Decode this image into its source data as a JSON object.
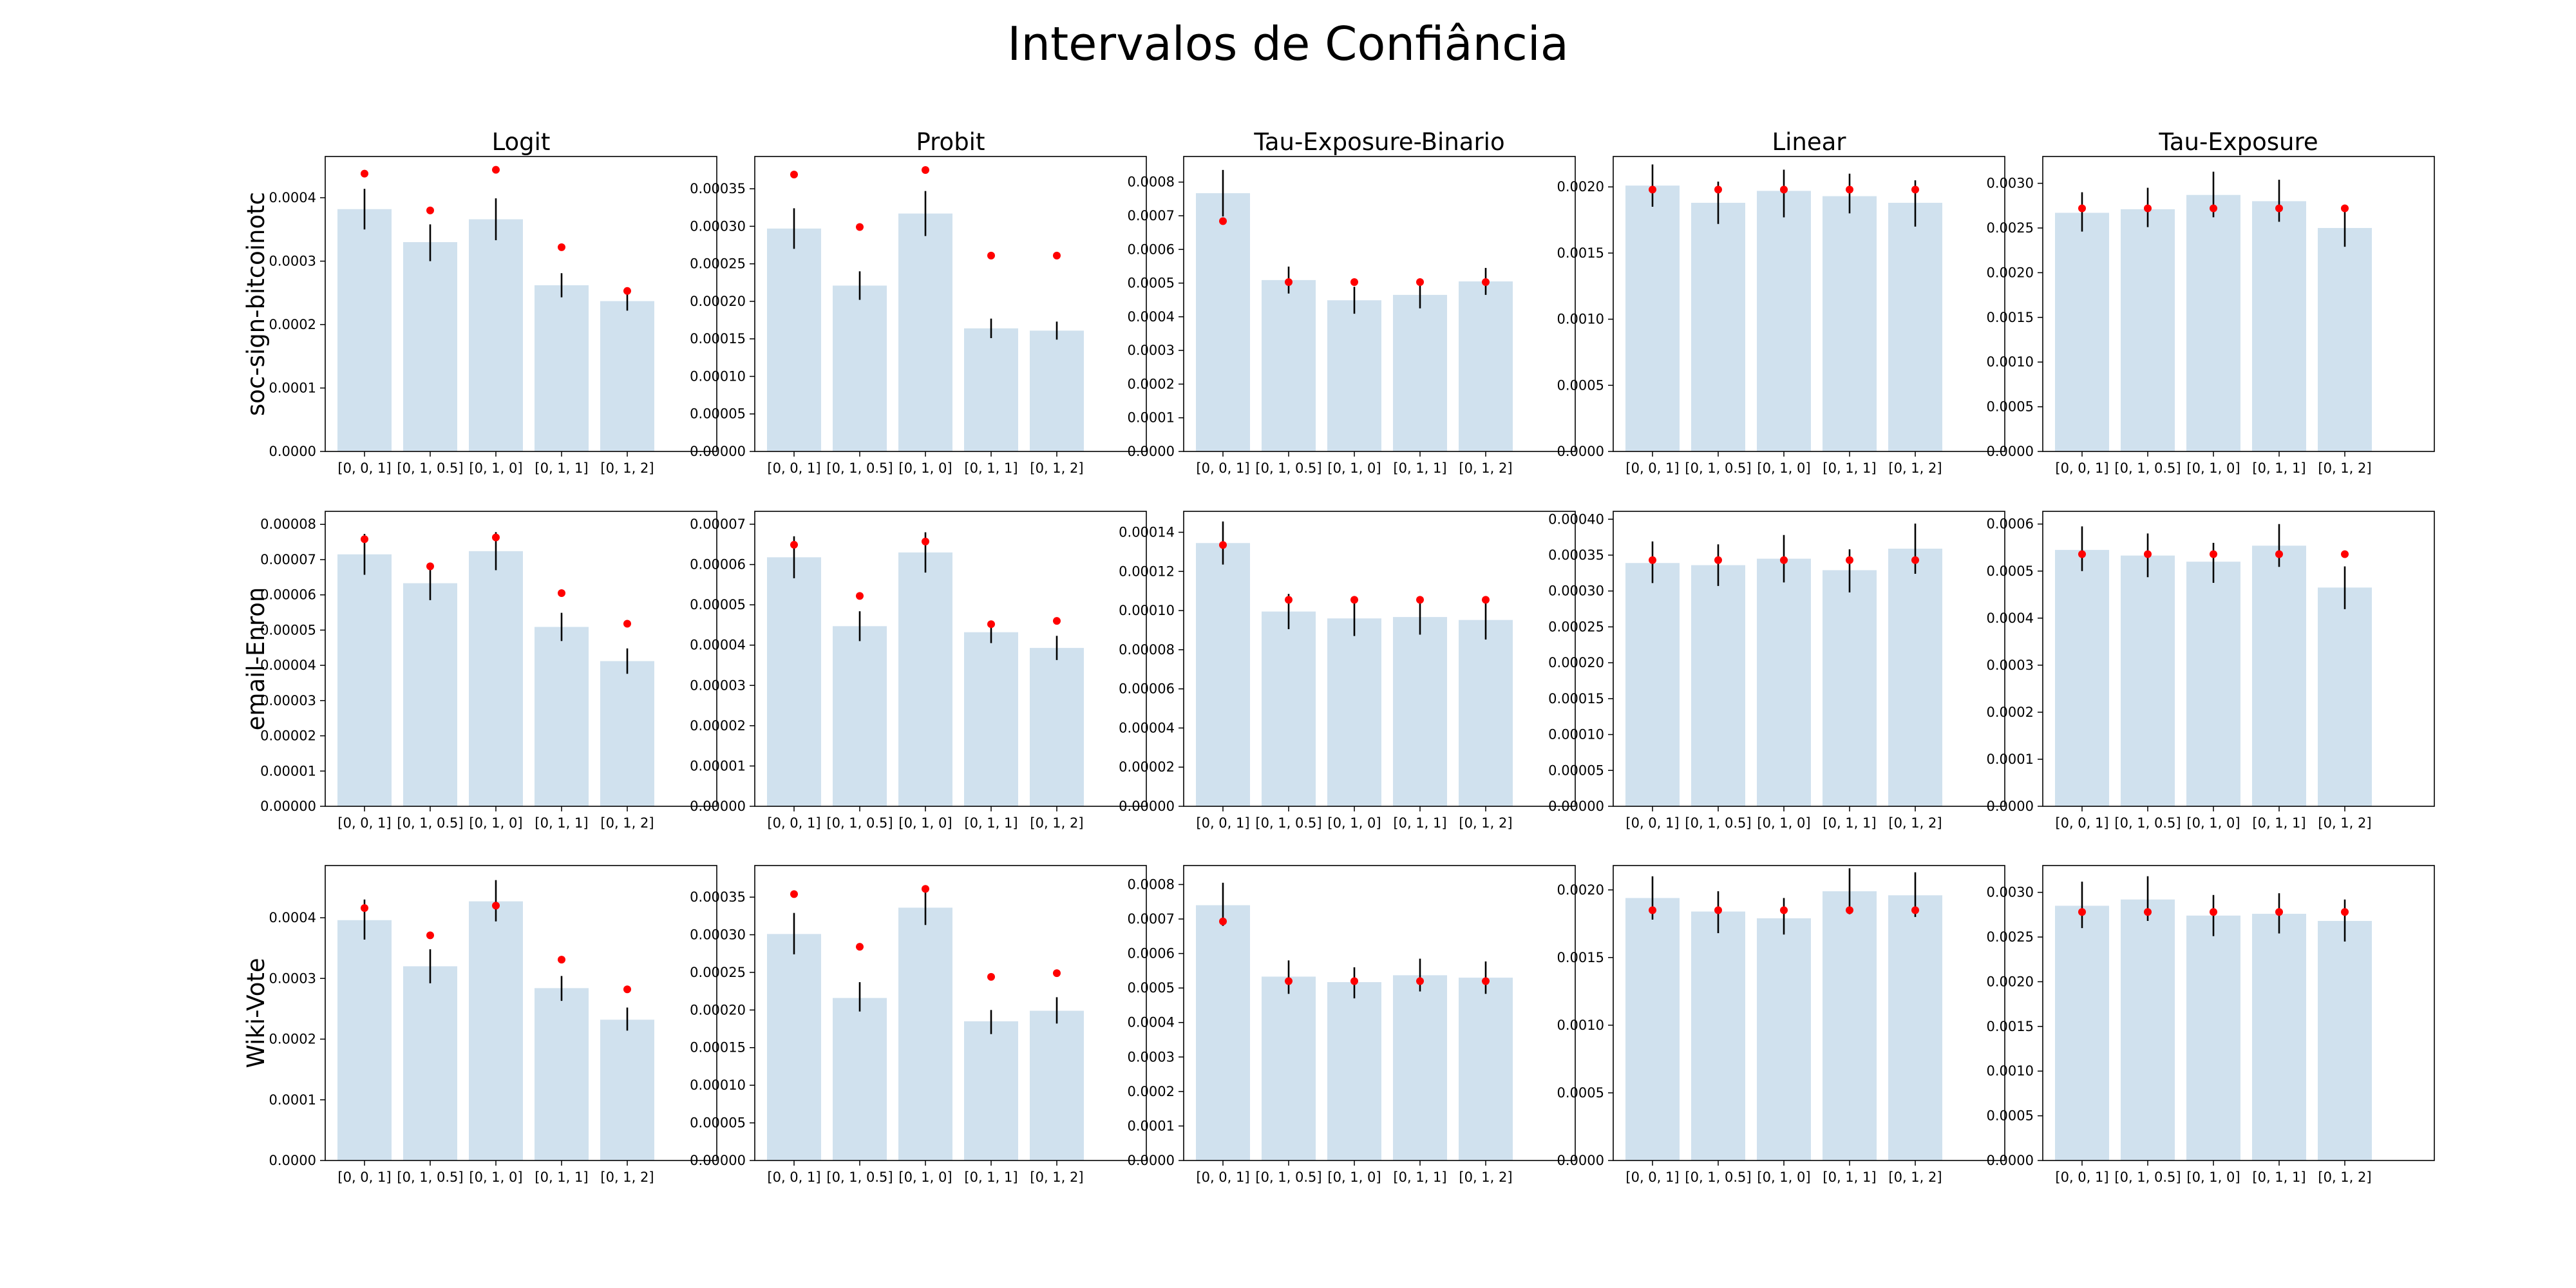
{
  "chart_data": {
    "type": "bar",
    "title": "Intervalos de Confiância",
    "columns": [
      "Logit",
      "Probit",
      "Tau-Exposure-Binario",
      "Linear",
      "Tau-Exposure"
    ],
    "rows": [
      "soc-sign-bitcoinotc",
      "email-Enron",
      "Wiki-Vote"
    ],
    "categories": [
      "[0, 0, 1]",
      "[0, 1, 0.5]",
      "[0, 1, 0]",
      "[0, 1, 1]",
      "[0, 1, 2]"
    ],
    "panels": [
      [
        {
          "ylim": [
            0,
            0.000465
          ],
          "ticks": [
            "0.0000",
            "0.0001",
            "0.0002",
            "0.0003",
            "0.0004"
          ],
          "tick_values": [
            0,
            0.0001,
            0.0002,
            0.0003,
            0.0004
          ],
          "values": [
            0.000382,
            0.00033,
            0.000366,
            0.000262,
            0.000237
          ],
          "err_low": [
            0.00035,
            0.0003,
            0.000333,
            0.000243,
            0.000222
          ],
          "err_high": [
            0.000414,
            0.000358,
            0.000399,
            0.000281,
            0.000254
          ],
          "points": [
            0.000438,
            0.00038,
            0.000444,
            0.000322,
            0.000253
          ]
        },
        {
          "ylim": [
            0,
            0.000393
          ],
          "ticks": [
            "0.00000",
            "0.00005",
            "0.00010",
            "0.00015",
            "0.00020",
            "0.00025",
            "0.00030",
            "0.00035"
          ],
          "tick_values": [
            0,
            5e-05,
            0.0001,
            0.00015,
            0.0002,
            0.00025,
            0.0003,
            0.00035
          ],
          "values": [
            0.000297,
            0.000221,
            0.000317,
            0.000164,
            0.000161
          ],
          "err_low": [
            0.00027,
            0.000202,
            0.000287,
            0.000151,
            0.000149
          ],
          "err_high": [
            0.000324,
            0.00024,
            0.000347,
            0.000177,
            0.000173
          ],
          "points": [
            0.000369,
            0.000299,
            0.000375,
            0.000261,
            0.000261
          ]
        },
        {
          "ylim": [
            0,
            0.000876
          ],
          "ticks": [
            "0.0000",
            "0.0001",
            "0.0002",
            "0.0003",
            "0.0004",
            "0.0005",
            "0.0006",
            "0.0007",
            "0.0008"
          ],
          "tick_values": [
            0,
            0.0001,
            0.0002,
            0.0003,
            0.0004,
            0.0005,
            0.0006,
            0.0007,
            0.0008
          ],
          "values": [
            0.000767,
            0.000509,
            0.000449,
            0.000465,
            0.000505
          ],
          "err_low": [
            0.000698,
            0.000469,
            0.000409,
            0.000425,
            0.000465
          ],
          "err_high": [
            0.000836,
            0.000549,
            0.000489,
            0.000505,
            0.000545
          ],
          "points": [
            0.000684,
            0.000503,
            0.000503,
            0.000503,
            0.000503
          ]
        },
        {
          "ylim": [
            0,
            0.00223
          ],
          "ticks": [
            "0.0000",
            "0.0005",
            "0.0010",
            "0.0015",
            "0.0020"
          ],
          "tick_values": [
            0,
            0.0005,
            0.001,
            0.0015,
            0.002
          ],
          "values": [
            0.00201,
            0.00188,
            0.00197,
            0.00193,
            0.00188
          ],
          "err_low": [
            0.00185,
            0.00172,
            0.00177,
            0.0018,
            0.0017
          ],
          "err_high": [
            0.00217,
            0.00204,
            0.00213,
            0.0021,
            0.00205
          ],
          "points": [
            0.00198,
            0.00198,
            0.00198,
            0.00198,
            0.00198
          ]
        },
        {
          "ylim": [
            0,
            0.0033
          ],
          "ticks": [
            "0.0000",
            "0.0005",
            "0.0010",
            "0.0015",
            "0.0020",
            "0.0025",
            "0.0030"
          ],
          "tick_values": [
            0,
            0.0005,
            0.001,
            0.0015,
            0.002,
            0.0025,
            0.003
          ],
          "values": [
            0.00267,
            0.00271,
            0.00287,
            0.0028,
            0.0025
          ],
          "err_low": [
            0.00246,
            0.00251,
            0.00262,
            0.00257,
            0.00229
          ],
          "err_high": [
            0.0029,
            0.00295,
            0.00313,
            0.00304,
            0.00274
          ],
          "points": [
            0.00272,
            0.00272,
            0.00272,
            0.00272,
            0.00272
          ]
        }
      ],
      [
        {
          "ylim": [
            0,
            8.37e-05
          ],
          "ticks": [
            "0.00000",
            "0.00001",
            "0.00002",
            "0.00003",
            "0.00004",
            "0.00005",
            "0.00006",
            "0.00007",
            "0.00008"
          ],
          "tick_values": [
            0,
            1e-05,
            2e-05,
            3e-05,
            4e-05,
            5e-05,
            6e-05,
            7e-05,
            8e-05
          ],
          "values": [
            7.15e-05,
            6.33e-05,
            7.24e-05,
            5.09e-05,
            4.12e-05
          ],
          "err_low": [
            6.57e-05,
            5.85e-05,
            6.7e-05,
            4.69e-05,
            3.76e-05
          ],
          "err_high": [
            7.73e-05,
            6.81e-05,
            7.78e-05,
            5.49e-05,
            4.48e-05
          ],
          "points": [
            7.58e-05,
            6.81e-05,
            7.63e-05,
            6.05e-05,
            5.18e-05
          ]
        },
        {
          "ylim": [
            0,
            7.32e-05
          ],
          "ticks": [
            "0.00000",
            "0.00001",
            "0.00002",
            "0.00003",
            "0.00004",
            "0.00005",
            "0.00006",
            "0.00007"
          ],
          "tick_values": [
            0,
            1e-05,
            2e-05,
            3e-05,
            4e-05,
            5e-05,
            6e-05,
            7e-05
          ],
          "values": [
            6.18e-05,
            4.47e-05,
            6.3e-05,
            4.32e-05,
            3.93e-05
          ],
          "err_low": [
            5.66e-05,
            4.1e-05,
            5.8e-05,
            4.05e-05,
            3.63e-05
          ],
          "err_high": [
            6.7e-05,
            4.84e-05,
            6.8e-05,
            4.59e-05,
            4.23e-05
          ],
          "points": [
            6.49e-05,
            5.22e-05,
            6.57e-05,
            4.52e-05,
            4.6e-05
          ]
        },
        {
          "ylim": [
            0,
            0.0001507
          ],
          "ticks": [
            "0.00000",
            "0.00002",
            "0.00004",
            "0.00006",
            "0.00008",
            "0.00010",
            "0.00012",
            "0.00014"
          ],
          "tick_values": [
            0,
            2e-05,
            4e-05,
            6e-05,
            8e-05,
            0.0001,
            0.00012,
            0.00014
          ],
          "values": [
            0.0001345,
            9.95e-05,
            9.6e-05,
            9.67e-05,
            9.52e-05
          ],
          "err_low": [
            0.0001235,
            9.05e-05,
            8.7e-05,
            8.77e-05,
            8.52e-05
          ],
          "err_high": [
            0.0001455,
            0.0001085,
            0.000105,
            0.0001057,
            0.0001052
          ],
          "points": [
            0.0001335,
            0.0001055,
            0.0001055,
            0.0001055,
            0.0001055
          ]
        },
        {
          "ylim": [
            0,
            0.000411
          ],
          "ticks": [
            "0.00000",
            "0.00005",
            "0.00010",
            "0.00015",
            "0.00020",
            "0.00025",
            "0.00030",
            "0.00035",
            "0.00040"
          ],
          "tick_values": [
            0,
            5e-05,
            0.0001,
            0.00015,
            0.0002,
            0.00025,
            0.0003,
            0.00035,
            0.0004
          ],
          "values": [
            0.000339,
            0.000336,
            0.000345,
            0.000329,
            0.000359
          ],
          "err_low": [
            0.000311,
            0.000307,
            0.000312,
            0.000298,
            0.000324
          ],
          "err_high": [
            0.000369,
            0.000365,
            0.000378,
            0.000358,
            0.000394
          ],
          "points": [
            0.000343,
            0.000343,
            0.000343,
            0.000343,
            0.000343
          ]
        },
        {
          "ylim": [
            0,
            0.000627
          ],
          "ticks": [
            "0.0000",
            "0.0001",
            "0.0002",
            "0.0003",
            "0.0004",
            "0.0005",
            "0.0006"
          ],
          "tick_values": [
            0,
            0.0001,
            0.0002,
            0.0003,
            0.0004,
            0.0005,
            0.0006
          ],
          "values": [
            0.000545,
            0.000533,
            0.00052,
            0.000554,
            0.000465
          ],
          "err_low": [
            0.0005,
            0.000487,
            0.000475,
            0.000509,
            0.000419
          ],
          "err_high": [
            0.000595,
            0.00058,
            0.00056,
            0.0006,
            0.00051
          ],
          "points": [
            0.000536,
            0.000536,
            0.000536,
            0.000536,
            0.000536
          ]
        }
      ],
      [
        {
          "ylim": [
            0,
            0.000486
          ],
          "ticks": [
            "0.0000",
            "0.0001",
            "0.0002",
            "0.0003",
            "0.0004"
          ],
          "tick_values": [
            0,
            0.0001,
            0.0002,
            0.0003,
            0.0004
          ],
          "values": [
            0.000396,
            0.00032,
            0.000427,
            0.000284,
            0.000232
          ],
          "err_low": [
            0.000364,
            0.000292,
            0.000394,
            0.000263,
            0.000214
          ],
          "err_high": [
            0.00043,
            0.000348,
            0.000462,
            0.000304,
            0.000252
          ],
          "points": [
            0.000416,
            0.000371,
            0.00042,
            0.000331,
            0.000282
          ]
        },
        {
          "ylim": [
            0,
            0.000392
          ],
          "ticks": [
            "0.00000",
            "0.00005",
            "0.00010",
            "0.00015",
            "0.00020",
            "0.00025",
            "0.00030",
            "0.00035"
          ],
          "tick_values": [
            0,
            5e-05,
            0.0001,
            0.00015,
            0.0002,
            0.00025,
            0.0003,
            0.00035
          ],
          "values": [
            0.000301,
            0.000216,
            0.000336,
            0.000185,
            0.000199
          ],
          "err_low": [
            0.000274,
            0.000198,
            0.000313,
            0.000168,
            0.000182
          ],
          "err_high": [
            0.000329,
            0.000237,
            0.000362,
            0.0002,
            0.000217
          ],
          "points": [
            0.000354,
            0.000284,
            0.000361,
            0.000244,
            0.000249
          ]
        },
        {
          "ylim": [
            0,
            0.000855
          ],
          "ticks": [
            "0.0000",
            "0.0001",
            "0.0002",
            "0.0003",
            "0.0004",
            "0.0005",
            "0.0006",
            "0.0007",
            "0.0008"
          ],
          "tick_values": [
            0,
            0.0001,
            0.0002,
            0.0003,
            0.0004,
            0.0005,
            0.0006,
            0.0007,
            0.0008
          ],
          "values": [
            0.00074,
            0.000533,
            0.000517,
            0.000537,
            0.00053
          ],
          "err_low": [
            0.00068,
            0.000483,
            0.00047,
            0.00049,
            0.000483
          ],
          "err_high": [
            0.000805,
            0.00058,
            0.00056,
            0.000585,
            0.000577
          ],
          "points": [
            0.000693,
            0.00052,
            0.00052,
            0.00052,
            0.00052
          ]
        },
        {
          "ylim": [
            0,
            0.00218
          ],
          "ticks": [
            "0.0000",
            "0.0005",
            "0.0010",
            "0.0015",
            "0.0020"
          ],
          "tick_values": [
            0,
            0.0005,
            0.001,
            0.0015,
            0.002
          ],
          "values": [
            0.00194,
            0.00184,
            0.00179,
            0.00199,
            0.00196
          ],
          "err_low": [
            0.00178,
            0.00168,
            0.00167,
            0.00182,
            0.0018
          ],
          "err_high": [
            0.0021,
            0.00199,
            0.00194,
            0.00216,
            0.00213
          ],
          "points": [
            0.00185,
            0.00185,
            0.00185,
            0.00185,
            0.00185
          ]
        },
        {
          "ylim": [
            0,
            0.0033
          ],
          "ticks": [
            "0.0000",
            "0.0005",
            "0.0010",
            "0.0015",
            "0.0020",
            "0.0025",
            "0.0030"
          ],
          "tick_values": [
            0,
            0.0005,
            0.001,
            0.0015,
            0.002,
            0.0025,
            0.003
          ],
          "values": [
            0.00285,
            0.00292,
            0.00274,
            0.00276,
            0.00268
          ],
          "err_low": [
            0.0026,
            0.00268,
            0.00251,
            0.00254,
            0.00245
          ],
          "err_high": [
            0.00312,
            0.00318,
            0.00297,
            0.00299,
            0.00292
          ],
          "points": [
            0.00278,
            0.00278,
            0.00278,
            0.00278,
            0.00278
          ]
        }
      ]
    ]
  },
  "colors": {
    "bar": "#d0e1ee",
    "point": "#ff0000",
    "error": "#000000"
  }
}
